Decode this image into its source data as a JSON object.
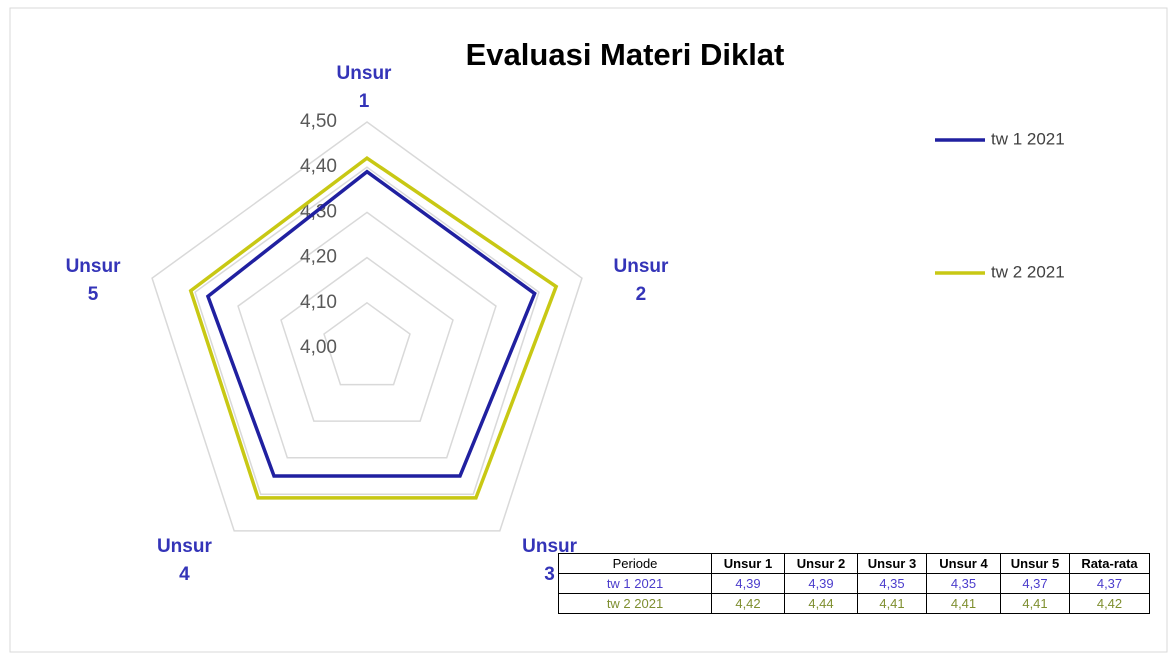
{
  "chart_data": {
    "type": "radar",
    "title": "Evaluasi Materi Diklat",
    "categories": [
      "Unsur 1",
      "Unsur 2",
      "Unsur 3",
      "Unsur 4",
      "Unsur 5"
    ],
    "series": [
      {
        "name": "tw 1 2021",
        "color": "#2020a0",
        "values": [
          4.39,
          4.39,
          4.35,
          4.35,
          4.37
        ]
      },
      {
        "name": "tw 2 2021",
        "color": "#c8c814",
        "values": [
          4.42,
          4.44,
          4.41,
          4.41,
          4.41
        ]
      }
    ],
    "rlim": [
      4.0,
      4.5
    ],
    "rticks": [
      {
        "value": 4.0,
        "label": "4,00"
      },
      {
        "value": 4.1,
        "label": "4,10"
      },
      {
        "value": 4.2,
        "label": "4,20"
      },
      {
        "value": 4.3,
        "label": "4,30"
      },
      {
        "value": 4.4,
        "label": "4,40"
      },
      {
        "value": 4.5,
        "label": "4,50"
      }
    ],
    "grid": true,
    "legend": "right"
  },
  "table": {
    "header": [
      "Periode",
      "Unsur 1",
      "Unsur 2",
      "Unsur 3",
      "Unsur 4",
      "Unsur 5",
      "Rata-rata"
    ],
    "rows": [
      [
        "tw 1 2021",
        "4,39",
        "4,39",
        "4,35",
        "4,35",
        "4,37",
        "4,37"
      ],
      [
        "tw 2 2021",
        "4,42",
        "4,44",
        "4,41",
        "4,41",
        "4,41",
        "4,42"
      ]
    ]
  }
}
